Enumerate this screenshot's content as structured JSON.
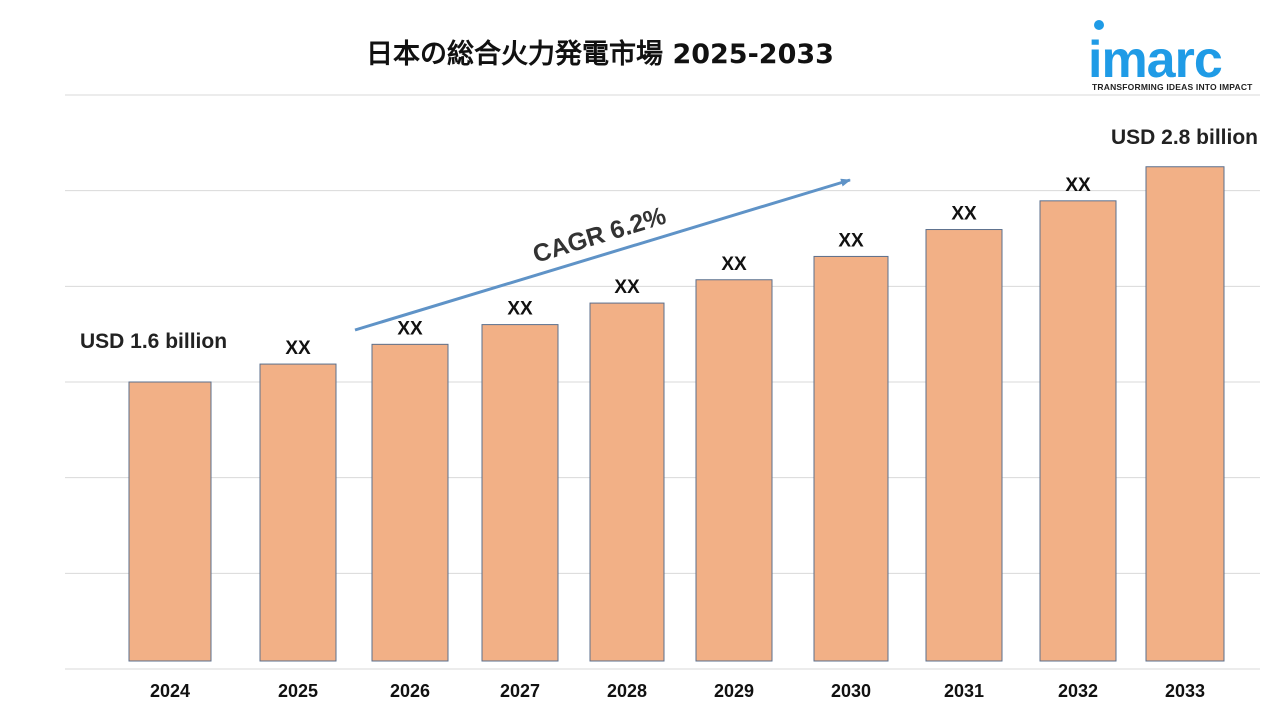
{
  "chart_data": {
    "type": "bar",
    "title": "日本の総合火力発電市場 2025-2033",
    "categories": [
      "2024",
      "2025",
      "2026",
      "2027",
      "2028",
      "2029",
      "2030",
      "2031",
      "2032",
      "2033"
    ],
    "values": [
      1.6,
      1.7,
      1.81,
      1.92,
      2.04,
      2.17,
      2.3,
      2.45,
      2.61,
      2.8
    ],
    "data_labels": [
      "USD 1.6 billion",
      "XX",
      "XX",
      "XX",
      "XX",
      "XX",
      "XX",
      "XX",
      "XX",
      "USD 2.8 billion"
    ],
    "ylim": [
      0,
      3.2
    ],
    "grid": true,
    "annotation": "CAGR 6.2%",
    "colors": {
      "bar": "#f2b086",
      "bar_edge": "#5b6f8c",
      "arrow": "#5f93c7"
    }
  },
  "brand": {
    "name": "imarc",
    "tagline": "TRANSFORMING IDEAS INTO IMPACT",
    "color": "#1f9be6"
  }
}
